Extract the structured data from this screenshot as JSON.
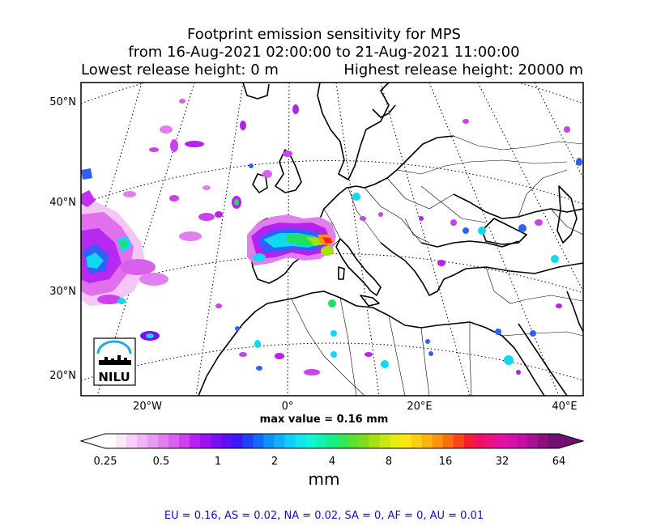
{
  "title": {
    "line1": "Footprint emission sensitivity for MPS",
    "line2": "from 16-Aug-2021 02:00:00 to 21-Aug-2021 11:00:00",
    "lowest": "Lowest release height: 0 m",
    "highest": "Highest release height: 20000 m"
  },
  "axes": {
    "lat_labels": [
      "50°N",
      "40°N",
      "30°N",
      "20°N"
    ],
    "lon_labels": [
      "20°W",
      "0°",
      "20°E",
      "40°E"
    ]
  },
  "logo": {
    "text": "NILU"
  },
  "max_value": "max value = 0.16 mm",
  "colorbar": {
    "ticks": [
      "0.25",
      "0.5",
      "1",
      "2",
      "4",
      "8",
      "16",
      "32",
      "64"
    ],
    "units": "mm",
    "colors": [
      "#ffffff",
      "#fbe8fb",
      "#f5d0f7",
      "#efb6f3",
      "#e89cf0",
      "#e080ee",
      "#d860ec",
      "#cc40ee",
      "#b820f0",
      "#9c10f2",
      "#7c10f4",
      "#5c10f6",
      "#3c18f8",
      "#2040fa",
      "#1468fa",
      "#1090fa",
      "#10b0f8",
      "#10cef6",
      "#10e6ee",
      "#10f4d8",
      "#10f2b0",
      "#18ee86",
      "#30e85c",
      "#58e232",
      "#80dc18",
      "#a6e010",
      "#c8e810",
      "#e6ee10",
      "#f8e810",
      "#fcd010",
      "#fcb410",
      "#fc9410",
      "#fa7010",
      "#f84818",
      "#f41c38",
      "#f01060",
      "#ec1080",
      "#e610a0",
      "#d810a8",
      "#c410a0",
      "#a81090",
      "#8c1080",
      "#701070"
    ]
  },
  "footer": "EU = 0.16,  AS = 0.02,  NA = 0.02,  SA = 0,  AF = 0,  AU = 0.01",
  "palette": {
    "magenta": "#e040f0",
    "violet": "#a020f0",
    "blue": "#3060f8",
    "cyan": "#10d8f0",
    "green": "#20e060",
    "yellow": "#e0e010",
    "red": "#f82020"
  }
}
